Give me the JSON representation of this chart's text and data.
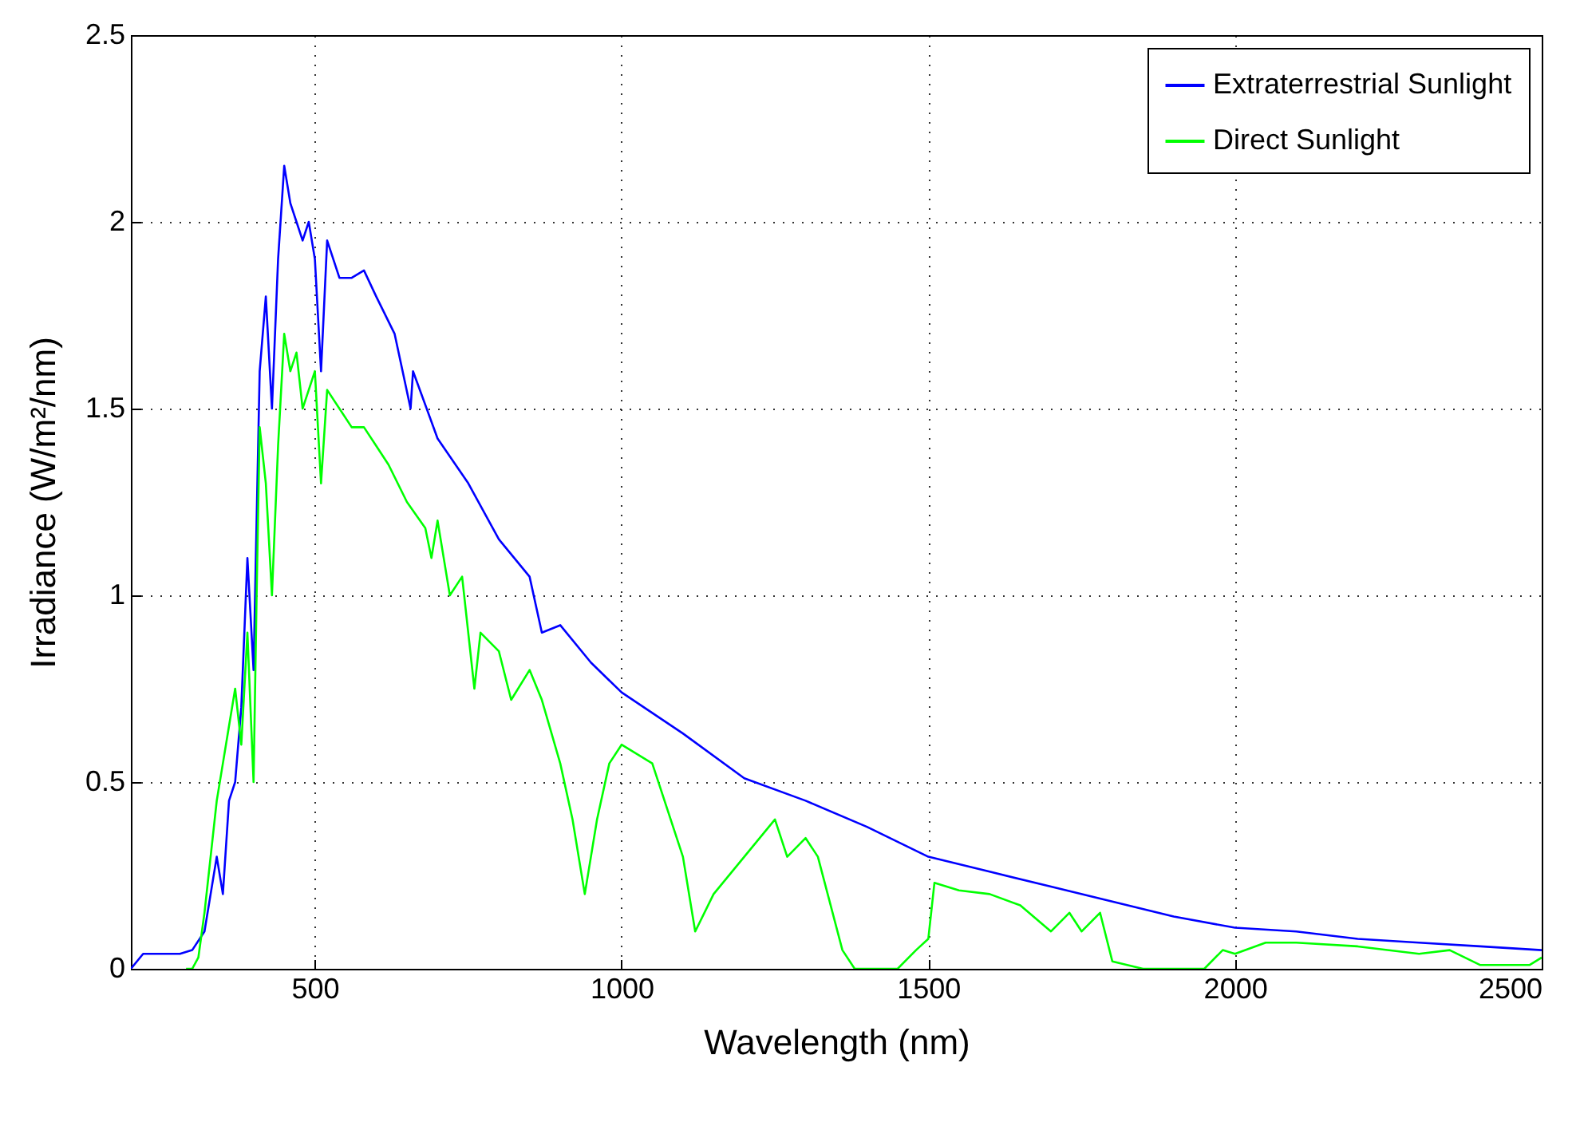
{
  "chart_data": {
    "type": "line",
    "xlabel": "Wavelength (nm)",
    "ylabel": "Irradiance (W/m²/nm)",
    "xlim": [
      200,
      2500
    ],
    "xticks": [
      500,
      1000,
      1500,
      2000,
      2500
    ],
    "ylim": [
      0,
      2.5
    ],
    "yticks": [
      0,
      0.5,
      1,
      1.5,
      2,
      2.5
    ],
    "grid": true,
    "legend": "top right",
    "line_style": "solid",
    "series": [
      {
        "name": "Extraterrestrial Sunlight",
        "color": "#0000ff",
        "x": [
          200,
          220,
          250,
          280,
          300,
          320,
          340,
          350,
          360,
          370,
          380,
          390,
          400,
          410,
          420,
          430,
          440,
          450,
          460,
          470,
          480,
          490,
          500,
          510,
          520,
          540,
          560,
          580,
          600,
          630,
          656,
          660,
          700,
          750,
          800,
          850,
          870,
          900,
          950,
          1000,
          1100,
          1200,
          1300,
          1400,
          1500,
          1600,
          1700,
          1800,
          1900,
          2000,
          2100,
          2200,
          2300,
          2400,
          2500
        ],
        "values": [
          0,
          0.04,
          0.04,
          0.04,
          0.05,
          0.1,
          0.3,
          0.2,
          0.45,
          0.5,
          0.7,
          1.1,
          0.8,
          1.6,
          1.8,
          1.5,
          1.9,
          2.15,
          2.05,
          2.0,
          1.95,
          2.0,
          1.9,
          1.6,
          1.95,
          1.85,
          1.85,
          1.87,
          1.8,
          1.7,
          1.5,
          1.6,
          1.42,
          1.3,
          1.15,
          1.05,
          0.9,
          0.92,
          0.82,
          0.74,
          0.63,
          0.51,
          0.45,
          0.38,
          0.3,
          0.26,
          0.22,
          0.18,
          0.14,
          0.11,
          0.1,
          0.08,
          0.07,
          0.06,
          0.05
        ]
      },
      {
        "name": "Direct Sunlight",
        "color": "#00ff00",
        "x": [
          290,
          300,
          310,
          320,
          330,
          340,
          350,
          360,
          370,
          380,
          390,
          400,
          405,
          410,
          420,
          430,
          440,
          450,
          460,
          470,
          480,
          490,
          500,
          510,
          520,
          540,
          560,
          580,
          600,
          620,
          650,
          680,
          690,
          700,
          720,
          740,
          760,
          770,
          800,
          820,
          850,
          870,
          900,
          920,
          940,
          960,
          980,
          1000,
          1050,
          1100,
          1120,
          1150,
          1200,
          1250,
          1270,
          1300,
          1320,
          1360,
          1380,
          1450,
          1480,
          1500,
          1510,
          1550,
          1600,
          1650,
          1700,
          1730,
          1750,
          1780,
          1800,
          1850,
          1950,
          1980,
          2000,
          2050,
          2100,
          2200,
          2300,
          2350,
          2400,
          2480,
          2500
        ],
        "values": [
          0,
          0,
          0.03,
          0.15,
          0.3,
          0.45,
          0.55,
          0.65,
          0.75,
          0.6,
          0.9,
          0.5,
          1.0,
          1.45,
          1.3,
          1.0,
          1.4,
          1.7,
          1.6,
          1.65,
          1.5,
          1.55,
          1.6,
          1.3,
          1.55,
          1.5,
          1.45,
          1.45,
          1.4,
          1.35,
          1.25,
          1.18,
          1.1,
          1.2,
          1.0,
          1.05,
          0.75,
          0.9,
          0.85,
          0.72,
          0.8,
          0.72,
          0.55,
          0.4,
          0.2,
          0.4,
          0.55,
          0.6,
          0.55,
          0.3,
          0.1,
          0.2,
          0.3,
          0.4,
          0.3,
          0.35,
          0.3,
          0.05,
          0,
          0,
          0.05,
          0.08,
          0.23,
          0.21,
          0.2,
          0.17,
          0.1,
          0.15,
          0.1,
          0.15,
          0.02,
          0,
          0,
          0.05,
          0.04,
          0.07,
          0.07,
          0.06,
          0.04,
          0.05,
          0.01,
          0.01,
          0.03
        ]
      }
    ]
  }
}
